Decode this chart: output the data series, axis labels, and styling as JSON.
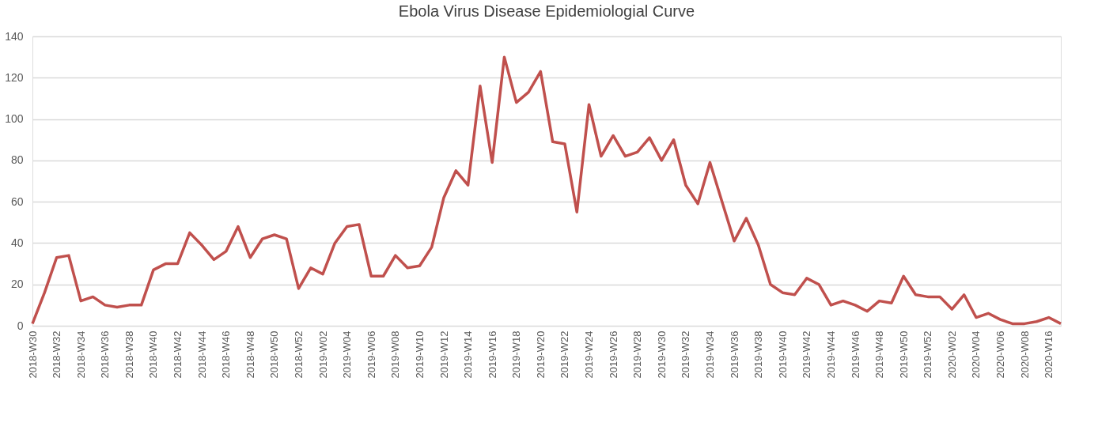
{
  "chart_data": {
    "type": "line",
    "title": "Ebola Virus Disease Epidemiologial Curve",
    "categories": [
      "2018-W30",
      null,
      "2018-W32",
      null,
      "2018-W34",
      null,
      "2018-W36",
      null,
      "2018-W38",
      null,
      "2018-W40",
      null,
      "2018-W42",
      null,
      "2018-W44",
      null,
      "2018-W46",
      null,
      "2018-W48",
      null,
      "2018-W50",
      null,
      "2018-W52",
      null,
      "2019-W02",
      null,
      "2019-W04",
      null,
      "2019-W06",
      null,
      "2019-W08",
      null,
      "2019-W10",
      null,
      "2019-W12",
      null,
      "2019-W14",
      null,
      "2019-W16",
      null,
      "2019-W18",
      null,
      "2019-W20",
      null,
      "2019-W22",
      null,
      "2019-W24",
      null,
      "2019-W26",
      null,
      "2019-W28",
      null,
      "2019-W30",
      null,
      "2019-W32",
      null,
      "2019-W34",
      null,
      "2019-W36",
      null,
      "2019-W38",
      null,
      "2019-W40",
      null,
      "2019-W42",
      null,
      "2019-W44",
      null,
      "2019-W46",
      null,
      "2019-W48",
      null,
      "2019-W50",
      null,
      "2019-W52",
      null,
      "2020-W02",
      null,
      "2020-W04",
      null,
      "2020-W06",
      null,
      "2020-W08",
      null,
      "2020-W16",
      null
    ],
    "series": [
      {
        "color": "#c0504d",
        "values": [
          1,
          16,
          33,
          34,
          12,
          14,
          10,
          9,
          10,
          10,
          27,
          30,
          30,
          45,
          39,
          32,
          36,
          48,
          33,
          42,
          44,
          42,
          18,
          28,
          25,
          40,
          48,
          49,
          24,
          24,
          34,
          28,
          29,
          38,
          62,
          75,
          68,
          116,
          79,
          130,
          108,
          113,
          123,
          89,
          88,
          55,
          107,
          82,
          92,
          82,
          84,
          91,
          80,
          90,
          68,
          59,
          79,
          60,
          41,
          52,
          39,
          20,
          16,
          15,
          23,
          20,
          10,
          12,
          10,
          7,
          12,
          11,
          24,
          15,
          14,
          14,
          8,
          15,
          4,
          6,
          3,
          1,
          1,
          2,
          4,
          1
        ]
      }
    ],
    "ylim": [
      0,
      140
    ],
    "yticks": [
      0,
      20,
      40,
      60,
      80,
      100,
      120,
      140
    ],
    "grid": "y",
    "legend": false,
    "marker": "none",
    "line_style": "solid"
  }
}
